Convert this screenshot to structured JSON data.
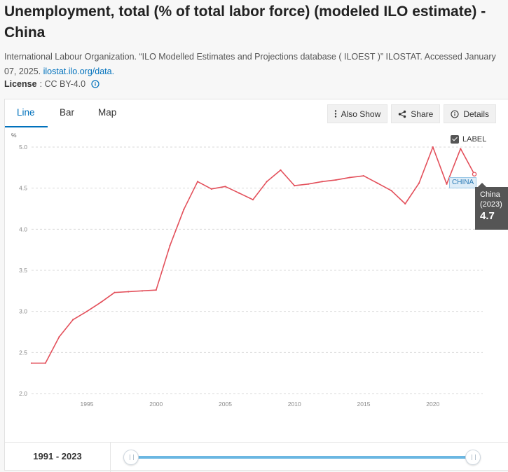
{
  "title": "Unemployment, total (% of total labor force) (modeled ILO estimate) - China",
  "citation": {
    "text": "International Labour Organization. “ILO Modelled Estimates and Projections database ( ILOEST )” ILOSTAT. Accessed January 07, 2025.",
    "link": "ilostat.ilo.org/data."
  },
  "license": {
    "label": "License",
    "value": ": CC BY-4.0"
  },
  "tabs": [
    {
      "label": "Line",
      "active": true
    },
    {
      "label": "Bar",
      "active": false
    },
    {
      "label": "Map",
      "active": false
    }
  ],
  "actions": {
    "also_show": "Also Show",
    "share": "Share",
    "details": "Details"
  },
  "label_toggle": {
    "text": "LABEL",
    "checked": true
  },
  "tooltip": {
    "country": "China",
    "year": "(2023)",
    "value": "4.7"
  },
  "series_label": "CHINA",
  "range_label": "1991 - 2023",
  "colors": {
    "line": "#e3505b",
    "accent": "#0071bc",
    "slider": "#6bb7e2"
  },
  "chart_data": {
    "type": "line",
    "title": "",
    "xlabel": "",
    "ylabel": "%",
    "xlim": [
      1991,
      2023
    ],
    "ylim": [
      2.0,
      5.0
    ],
    "yticks": [
      "2.0",
      "2.5",
      "3.0",
      "3.5",
      "4.0",
      "4.5",
      "5.0"
    ],
    "xticks": [
      "1995",
      "2000",
      "2005",
      "2010",
      "2015",
      "2020"
    ],
    "grid": true,
    "series": [
      {
        "name": "CHINA",
        "x": [
          1991,
          1992,
          1993,
          1994,
          1995,
          1996,
          1997,
          1998,
          1999,
          2000,
          2001,
          2002,
          2003,
          2004,
          2005,
          2006,
          2007,
          2008,
          2009,
          2010,
          2011,
          2012,
          2013,
          2014,
          2015,
          2016,
          2017,
          2018,
          2019,
          2020,
          2021,
          2022,
          2023
        ],
        "y": [
          2.37,
          2.37,
          2.69,
          2.9,
          3.0,
          3.11,
          3.23,
          3.24,
          3.25,
          3.26,
          3.8,
          4.24,
          4.58,
          4.49,
          4.52,
          4.44,
          4.36,
          4.58,
          4.72,
          4.53,
          4.55,
          4.58,
          4.6,
          4.63,
          4.65,
          4.56,
          4.47,
          4.31,
          4.56,
          5.0,
          4.55,
          4.98,
          4.67
        ]
      }
    ]
  }
}
